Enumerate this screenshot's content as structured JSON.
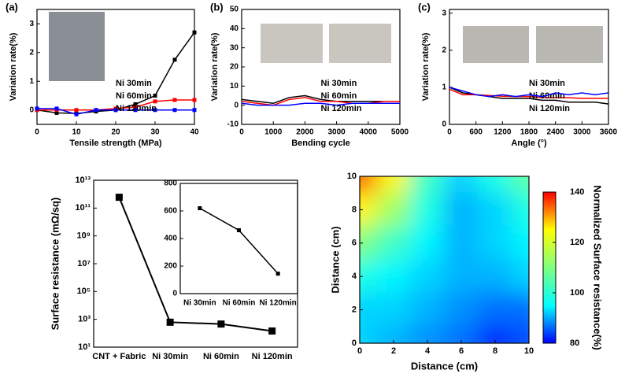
{
  "chart_data": [
    {
      "type": "line",
      "label": "(a)",
      "x_label": "Tensile strength (MPa)",
      "y_label": "Variation rate(%)",
      "x": [
        0,
        5,
        10,
        15,
        20,
        25,
        30,
        35,
        40
      ],
      "series": [
        {
          "name": "Ni 30min",
          "color": "#000000",
          "values": [
            0,
            -0.1,
            -0.12,
            -0.05,
            0,
            0.2,
            0.5,
            1.75,
            2.7
          ]
        },
        {
          "name": "Ni 60min",
          "color": "#ff0000",
          "values": [
            0,
            0,
            0,
            0,
            0.05,
            0.1,
            0.3,
            0.35,
            0.35
          ]
        },
        {
          "name": "Ni 120min",
          "color": "#0000ff",
          "values": [
            0.05,
            0.05,
            -0.15,
            0,
            0,
            0,
            0,
            0,
            0
          ]
        }
      ],
      "xlim": [
        0,
        40
      ],
      "xticks": [
        0,
        10,
        20,
        30,
        40
      ],
      "ylim": [
        -0.5,
        3.5
      ],
      "yticks": [
        0,
        1,
        2,
        3
      ],
      "markers": true,
      "legend": "lower-right"
    },
    {
      "type": "line",
      "label": "(b)",
      "x_label": "Bending cycle",
      "y_label": "Variation  rate(%)",
      "x": [
        0,
        500,
        1000,
        1500,
        2000,
        2500,
        3000,
        3500,
        4000,
        4500,
        5000
      ],
      "series": [
        {
          "name": "Ni 30min",
          "color": "#000000",
          "values": [
            3,
            2,
            1,
            4,
            5,
            3,
            2,
            2,
            2,
            2,
            2
          ]
        },
        {
          "name": "Ni 60min",
          "color": "#ff0000",
          "values": [
            2,
            1,
            0,
            3,
            4,
            2,
            2,
            1,
            1,
            2,
            2
          ]
        },
        {
          "name": "Ni 120min",
          "color": "#0000ff",
          "values": [
            1,
            0,
            0,
            0,
            1,
            1,
            0,
            1,
            1,
            1,
            1
          ]
        }
      ],
      "xlim": [
        0,
        5000
      ],
      "xticks": [
        0,
        1000,
        2000,
        3000,
        4000,
        5000
      ],
      "ylim": [
        -10,
        50
      ],
      "yticks": [
        -10,
        0,
        10,
        20,
        30,
        40,
        50
      ],
      "markers": false,
      "legend": "lower-right"
    },
    {
      "type": "line",
      "label": "(c)",
      "x_label": "Angle (°)",
      "y_label": "Variation rate(%)",
      "x": [
        0,
        300,
        600,
        900,
        1200,
        1500,
        1800,
        2100,
        2400,
        2700,
        3000,
        3300,
        3600
      ],
      "series": [
        {
          "name": "Ni 30min",
          "color": "#000000",
          "values": [
            1,
            0.85,
            0.8,
            0.75,
            0.7,
            0.7,
            0.7,
            0.65,
            0.65,
            0.6,
            0.6,
            0.6,
            0.55
          ]
        },
        {
          "name": "Ni 60min",
          "color": "#ff0000",
          "values": [
            0.95,
            0.8,
            0.8,
            0.78,
            0.76,
            0.75,
            0.75,
            0.72,
            0.72,
            0.72,
            0.7,
            0.7,
            0.7
          ]
        },
        {
          "name": "Ni 120min",
          "color": "#0000ff",
          "values": [
            1,
            0.9,
            0.8,
            0.75,
            0.8,
            0.75,
            0.8,
            0.75,
            0.85,
            0.8,
            0.85,
            0.8,
            0.85
          ]
        }
      ],
      "xlim": [
        0,
        3600
      ],
      "xticks": [
        0,
        600,
        1200,
        1800,
        2400,
        3000,
        3600
      ],
      "ylim": [
        0,
        3.1
      ],
      "yticks": [
        0,
        1,
        2,
        3
      ],
      "markers": false,
      "legend": "lower-right"
    },
    {
      "type": "line",
      "y_label": "Surface resistance (mΩ/sq)",
      "categories": [
        "CNT + Fabric",
        "Ni 30min",
        "Ni 60min",
        "Ni 120min"
      ],
      "series": [
        {
          "name": null,
          "color": "#000000",
          "values": [
            600000000000,
            620,
            460,
            145
          ]
        }
      ],
      "log_scale": true,
      "ylim": [
        10,
        10000000000000
      ],
      "yticks": [
        {
          "value": 10,
          "label": "10¹"
        },
        {
          "value": 1000,
          "label": "10³"
        },
        {
          "value": 100000,
          "label": "10⁵"
        },
        {
          "value": 10000000,
          "label": "10⁷"
        },
        {
          "value": 1000000000,
          "label": "10⁹"
        },
        {
          "value": 100000000000,
          "label": "10¹¹"
        },
        {
          "value": 10000000000000,
          "label": "10¹³"
        }
      ],
      "markers": true
    },
    {
      "type": "line",
      "categories": [
        "Ni 30min",
        "Ni 60min",
        "Ni 120min"
      ],
      "series": [
        {
          "name": null,
          "color": "#000000",
          "values": [
            620,
            460,
            145
          ]
        }
      ],
      "ylim": [
        0,
        800
      ],
      "yticks": [
        0,
        200,
        400,
        600,
        800
      ],
      "markers": true
    },
    {
      "type": "heatmap",
      "x_label": "Distance (cm)",
      "y_label": "Distance (cm)",
      "colorbar_label": "Normalized Surface resistance(%)",
      "x": [
        0,
        2,
        4,
        6,
        8,
        10
      ],
      "y": [
        10,
        8,
        6,
        4,
        2,
        0
      ],
      "z": [
        [
          128,
          118,
          106,
          100,
          104,
          108
        ],
        [
          118,
          112,
          104,
          98,
          100,
          104
        ],
        [
          110,
          106,
          102,
          98,
          100,
          102
        ],
        [
          104,
          102,
          100,
          98,
          98,
          100
        ],
        [
          100,
          100,
          98,
          96,
          94,
          94
        ],
        [
          100,
          98,
          96,
          94,
          90,
          92
        ]
      ],
      "xlim": [
        0,
        10
      ],
      "xticks": [
        0,
        2,
        4,
        6,
        8,
        10
      ],
      "ylim": [
        0,
        10
      ],
      "yticks": [
        0,
        2,
        4,
        6,
        8,
        10
      ],
      "zlim": [
        80,
        140
      ],
      "zticks": [
        80,
        100,
        120,
        140
      ],
      "colormap": "jet"
    }
  ]
}
